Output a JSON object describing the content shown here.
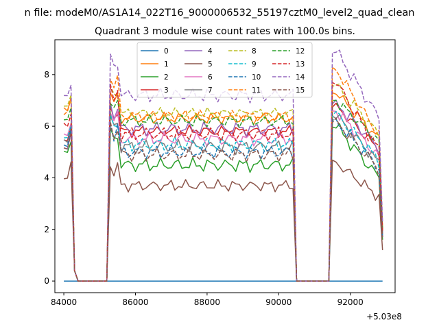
{
  "chart_data": {
    "type": "line",
    "suptitle": "n file: modeM0/AS1A14_022T16_9000006532_55197cztM0_level2_quad_clean",
    "title": "Quadrant 3 module wise count rates with 100.0s bins.",
    "xlabel": "",
    "ylabel": "",
    "offset_label": "+5.03e8",
    "xlim": [
      83750,
      93250
    ],
    "ylim": [
      -0.45,
      9.35
    ],
    "xticks": [
      84000,
      86000,
      88000,
      90000,
      92000
    ],
    "xtick_labels": [
      "84000",
      "86000",
      "88000",
      "90000",
      "92000"
    ],
    "yticks": [
      0,
      2,
      4,
      6,
      8
    ],
    "ytick_labels": [
      "0",
      "2",
      "4",
      "6",
      "8"
    ],
    "grid": false,
    "legend_position": "upper-center",
    "legend_columns": 4,
    "x_start": 84000,
    "x_step": 100,
    "gap_start_1": 84400,
    "gap_end_1": 85200,
    "gap_start_2": 90500,
    "gap_end_2": 91400,
    "x_end": 92900,
    "series": [
      {
        "name": "0",
        "color": "#1f77b4",
        "style": "solid",
        "level": 0.0,
        "start": 0.0,
        "peak": 0.0,
        "end": 0.0,
        "noise": 0.0,
        "phase": 0.0
      },
      {
        "name": "1",
        "color": "#ff7f0e",
        "style": "solid",
        "level": 6.3,
        "start": 6.6,
        "peak": 7.3,
        "end": 2.0,
        "noise": 0.25,
        "phase": 1.1
      },
      {
        "name": "2",
        "color": "#2ca02c",
        "style": "solid",
        "level": 4.5,
        "start": 5.0,
        "peak": 6.0,
        "end": 1.6,
        "noise": 0.3,
        "phase": 2.3
      },
      {
        "name": "3",
        "color": "#d62728",
        "style": "solid",
        "level": 5.8,
        "start": 5.5,
        "peak": 6.8,
        "end": 1.9,
        "noise": 0.25,
        "phase": 3.7
      },
      {
        "name": "4",
        "color": "#9467bd",
        "style": "solid",
        "level": 5.9,
        "start": 5.2,
        "peak": 6.9,
        "end": 1.8,
        "noise": 0.3,
        "phase": 4.1
      },
      {
        "name": "5",
        "color": "#8c564b",
        "style": "solid",
        "level": 3.7,
        "start": 4.0,
        "peak": 4.6,
        "end": 1.2,
        "noise": 0.25,
        "phase": 5.2
      },
      {
        "name": "6",
        "color": "#e377c2",
        "style": "solid",
        "level": 5.5,
        "start": 5.6,
        "peak": 6.6,
        "end": 1.9,
        "noise": 0.3,
        "phase": 0.6
      },
      {
        "name": "7",
        "color": "#7f7f7f",
        "style": "solid",
        "level": 5.2,
        "start": 5.4,
        "peak": 6.4,
        "end": 1.8,
        "noise": 0.3,
        "phase": 1.9
      },
      {
        "name": "8",
        "color": "#bcbd22",
        "style": "dashed",
        "level": 6.5,
        "start": 6.8,
        "peak": 7.6,
        "end": 2.1,
        "noise": 0.25,
        "phase": 2.8
      },
      {
        "name": "9",
        "color": "#17becf",
        "style": "dashed",
        "level": 5.3,
        "start": 5.6,
        "peak": 6.5,
        "end": 1.8,
        "noise": 0.3,
        "phase": 3.3
      },
      {
        "name": "10",
        "color": "#1f77b4",
        "style": "dashed",
        "level": 5.0,
        "start": 5.3,
        "peak": 6.2,
        "end": 1.7,
        "noise": 0.3,
        "phase": 4.6
      },
      {
        "name": "11",
        "color": "#ff7f0e",
        "style": "dashed",
        "level": 6.4,
        "start": 6.5,
        "peak": 8.2,
        "end": 2.0,
        "noise": 0.25,
        "phase": 5.8
      },
      {
        "name": "12",
        "color": "#2ca02c",
        "style": "dashed",
        "level": 6.2,
        "start": 6.2,
        "peak": 7.0,
        "end": 2.0,
        "noise": 0.25,
        "phase": 0.3
      },
      {
        "name": "13",
        "color": "#d62728",
        "style": "dashed",
        "level": 5.7,
        "start": 6.0,
        "peak": 7.7,
        "end": 1.9,
        "noise": 0.3,
        "phase": 1.5
      },
      {
        "name": "14",
        "color": "#9467bd",
        "style": "dashed",
        "level": 7.2,
        "start": 7.2,
        "peak": 8.9,
        "end": 2.3,
        "noise": 0.3,
        "phase": 2.6
      },
      {
        "name": "15",
        "color": "#8c564b",
        "style": "dashed",
        "level": 4.9,
        "start": 5.2,
        "peak": 6.2,
        "end": 1.7,
        "noise": 0.3,
        "phase": 3.9
      }
    ]
  }
}
